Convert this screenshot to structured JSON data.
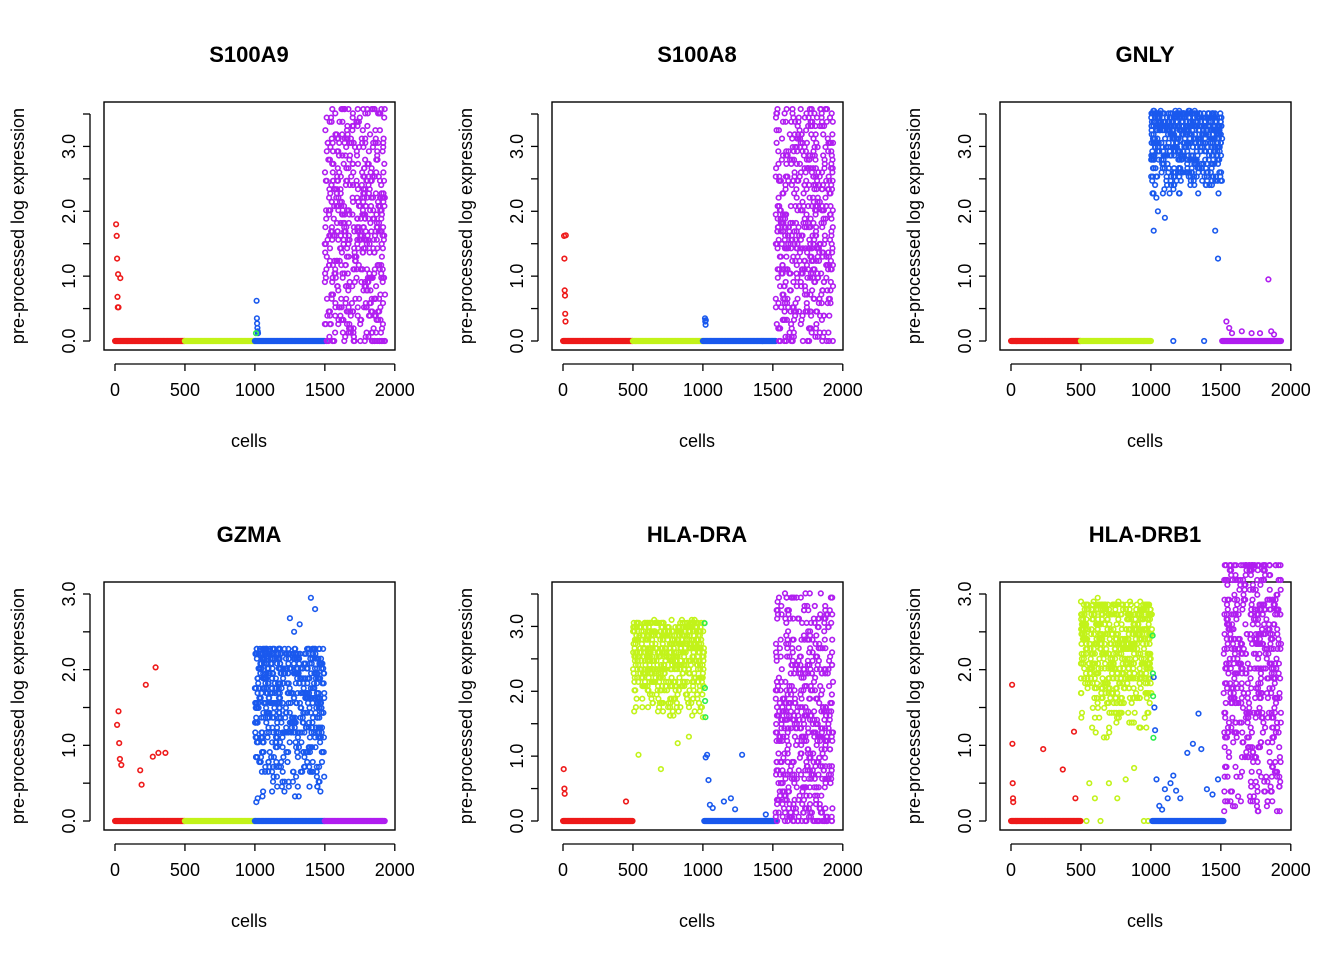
{
  "colors": {
    "red": "#ee1a1a",
    "yellowgreen": "#c2f31a",
    "blue": "#1a59ee",
    "magenta": "#b01ef0",
    "green": "#2dee4f"
  },
  "chart_data": [
    {
      "type": "scatter",
      "title": "S100A9",
      "xlabel": "cells",
      "ylabel": "pre-processed log expression",
      "xlim": [
        0,
        1930
      ],
      "ylim": [
        0,
        3.55
      ],
      "xticks": [
        0,
        500,
        1000,
        1500,
        2000
      ],
      "xtick_labels": [
        "0",
        "500",
        "1000",
        "1500",
        "2000"
      ],
      "yticks": [
        0.0,
        0.5,
        1.0,
        1.5,
        2.0,
        2.5,
        3.0,
        3.5
      ],
      "ytick_labels": [
        "0.0",
        "",
        "1.0",
        "",
        "2.0",
        "",
        "3.0",
        ""
      ],
      "groups": [
        {
          "x_range": [
            1,
            500
          ],
          "color": "red",
          "dist": "spikes",
          "pts": [
            [
              8,
              1.8
            ],
            [
              12,
              1.62
            ],
            [
              15,
              1.27
            ],
            [
              18,
              0.68
            ],
            [
              20,
              0.52
            ],
            [
              22,
              1.03
            ],
            [
              25,
              0.52
            ],
            [
              38,
              0.97
            ]
          ]
        },
        {
          "x_range": [
            500,
            1000
          ],
          "color": "yellowgreen",
          "dist": "zero"
        },
        {
          "x_range": [
            1000,
            1500
          ],
          "color": "blue",
          "dist": "spikes",
          "pts": [
            [
              1012,
              0.62
            ],
            [
              1014,
              0.35
            ],
            [
              1016,
              0.27
            ],
            [
              1018,
              0.2
            ],
            [
              1020,
              0.15
            ],
            [
              1022,
              0.12
            ]
          ]
        },
        {
          "x_range": [
            1000,
            1020
          ],
          "color": "green",
          "dist": "spikes",
          "pts": [
            [
              1008,
              0.12
            ]
          ]
        },
        {
          "x_range": [
            1500,
            1930
          ],
          "color": "magenta",
          "dist": "spread",
          "lo": 0.0,
          "hi": 3.55,
          "density": "dense"
        }
      ]
    },
    {
      "type": "scatter",
      "title": "S100A8",
      "xlabel": "cells",
      "ylabel": "pre-processed log expression",
      "xlim": [
        0,
        1930
      ],
      "ylim": [
        0,
        3.55
      ],
      "xticks": [
        0,
        500,
        1000,
        1500,
        2000
      ],
      "xtick_labels": [
        "0",
        "500",
        "1000",
        "1500",
        "2000"
      ],
      "yticks": [
        0.0,
        0.5,
        1.0,
        1.5,
        2.0,
        2.5,
        3.0,
        3.5
      ],
      "ytick_labels": [
        "0.0",
        "",
        "1.0",
        "",
        "2.0",
        "",
        "3.0",
        ""
      ],
      "groups": [
        {
          "x_range": [
            1,
            500
          ],
          "color": "red",
          "dist": "spikes",
          "pts": [
            [
              8,
              1.62
            ],
            [
              10,
              1.27
            ],
            [
              12,
              0.78
            ],
            [
              14,
              0.7
            ],
            [
              16,
              0.42
            ],
            [
              18,
              0.3
            ],
            [
              20,
              1.63
            ]
          ]
        },
        {
          "x_range": [
            500,
            1000
          ],
          "color": "yellowgreen",
          "dist": "zero"
        },
        {
          "x_range": [
            1000,
            1520
          ],
          "color": "blue",
          "dist": "spikes",
          "pts": [
            [
              1015,
              0.35
            ],
            [
              1017,
              0.3
            ],
            [
              1019,
              0.25
            ],
            [
              1021,
              0.32
            ]
          ]
        },
        {
          "x_range": [
            1520,
            1930
          ],
          "color": "magenta",
          "dist": "spread",
          "lo": 0.0,
          "hi": 3.55,
          "density": "dense"
        }
      ]
    },
    {
      "type": "scatter",
      "title": "GNLY",
      "xlabel": "cells",
      "ylabel": "pre-processed log expression",
      "xlim": [
        0,
        1930
      ],
      "ylim": [
        0,
        3.55
      ],
      "xticks": [
        0,
        500,
        1000,
        1500,
        2000
      ],
      "xtick_labels": [
        "0",
        "500",
        "1000",
        "1500",
        "2000"
      ],
      "yticks": [
        0.0,
        0.5,
        1.0,
        1.5,
        2.0,
        2.5,
        3.0,
        3.5
      ],
      "ytick_labels": [
        "0.0",
        "",
        "1.0",
        "",
        "2.0",
        "",
        "3.0",
        ""
      ],
      "groups": [
        {
          "x_range": [
            1,
            500
          ],
          "color": "red",
          "dist": "zero"
        },
        {
          "x_range": [
            500,
            1000
          ],
          "color": "yellowgreen",
          "dist": "zero"
        },
        {
          "x_range": [
            1000,
            1510
          ],
          "color": "blue",
          "dist": "high",
          "lo": 2.2,
          "hi": 3.55,
          "extra": [
            [
              1020,
              1.7
            ],
            [
              1050,
              2.0
            ],
            [
              1100,
              1.9
            ],
            [
              1480,
              1.27
            ],
            [
              1460,
              1.7
            ],
            [
              1160,
              0.0
            ],
            [
              1380,
              0.0
            ]
          ]
        },
        {
          "x_range": [
            1510,
            1930
          ],
          "color": "magenta",
          "dist": "spikes",
          "pts": [
            [
              1540,
              0.3
            ],
            [
              1560,
              0.2
            ],
            [
              1580,
              0.12
            ],
            [
              1650,
              0.15
            ],
            [
              1720,
              0.12
            ],
            [
              1780,
              0.12
            ],
            [
              1840,
              0.95
            ],
            [
              1860,
              0.15
            ],
            [
              1880,
              0.1
            ]
          ]
        }
      ]
    },
    {
      "type": "scatter",
      "title": "GZMA",
      "xlabel": "cells",
      "ylabel": "pre-processed log expression",
      "xlim": [
        0,
        1930
      ],
      "ylim": [
        0,
        3.0
      ],
      "xticks": [
        0,
        500,
        1000,
        1500,
        2000
      ],
      "xtick_labels": [
        "0",
        "500",
        "1000",
        "1500",
        "2000"
      ],
      "yticks": [
        0.0,
        0.5,
        1.0,
        1.5,
        2.0,
        2.5,
        3.0
      ],
      "ytick_labels": [
        "0.0",
        "",
        "1.0",
        "",
        "2.0",
        "",
        "3.0"
      ],
      "groups": [
        {
          "x_range": [
            1,
            500
          ],
          "color": "red",
          "dist": "spikes",
          "pts": [
            [
              15,
              1.27
            ],
            [
              25,
              1.45
            ],
            [
              30,
              1.03
            ],
            [
              35,
              0.82
            ],
            [
              45,
              0.74
            ],
            [
              180,
              0.67
            ],
            [
              220,
              1.8
            ],
            [
              270,
              0.85
            ],
            [
              290,
              2.03
            ],
            [
              310,
              0.9
            ],
            [
              360,
              0.9
            ],
            [
              190,
              0.48
            ]
          ]
        },
        {
          "x_range": [
            500,
            1000
          ],
          "color": "yellowgreen",
          "dist": "zero"
        },
        {
          "x_range": [
            1000,
            1500
          ],
          "color": "blue",
          "dist": "high",
          "lo": 0.2,
          "hi": 2.3,
          "extra": [
            [
              1400,
              2.95
            ],
            [
              1430,
              2.8
            ],
            [
              1250,
              2.68
            ],
            [
              1320,
              2.6
            ],
            [
              1280,
              2.5
            ],
            [
              1010,
              0.25
            ],
            [
              1020,
              0.3
            ]
          ],
          "zero_band": true
        },
        {
          "x_range": [
            1500,
            1930
          ],
          "color": "magenta",
          "dist": "zero"
        }
      ]
    },
    {
      "type": "scatter",
      "title": "HLA-DRA",
      "xlabel": "cells",
      "ylabel": "pre-processed log expression",
      "xlim": [
        0,
        1930
      ],
      "ylim": [
        0,
        3.55
      ],
      "xticks": [
        0,
        500,
        1000,
        1500,
        2000
      ],
      "xtick_labels": [
        "0",
        "500",
        "1000",
        "1500",
        "2000"
      ],
      "yticks": [
        0.0,
        0.5,
        1.0,
        1.5,
        2.0,
        2.5,
        3.0,
        3.5
      ],
      "ytick_labels": [
        "0.0",
        "",
        "1.0",
        "",
        "2.0",
        "",
        "3.0",
        ""
      ],
      "groups": [
        {
          "x_range": [
            1,
            500
          ],
          "color": "red",
          "dist": "spikes",
          "pts": [
            [
              5,
              0.8
            ],
            [
              10,
              0.5
            ],
            [
              12,
              0.42
            ],
            [
              450,
              0.3
            ]
          ]
        },
        {
          "x_range": [
            500,
            1010
          ],
          "color": "yellowgreen",
          "dist": "high",
          "lo": 1.5,
          "hi": 3.1,
          "extra": [
            [
              540,
              1.02
            ],
            [
              700,
              0.8
            ],
            [
              820,
              1.2
            ],
            [
              900,
              1.3
            ],
            [
              1000,
              1.6
            ]
          ]
        },
        {
          "x_range": [
            1010,
            1520
          ],
          "color": "blue",
          "dist": "spikes",
          "pts": [
            [
              1020,
              0.98
            ],
            [
              1030,
              1.02
            ],
            [
              1040,
              0.63
            ],
            [
              1050,
              0.25
            ],
            [
              1070,
              0.2
            ],
            [
              1150,
              0.3
            ],
            [
              1200,
              0.35
            ],
            [
              1230,
              0.18
            ],
            [
              1280,
              1.02
            ],
            [
              1450,
              0.1
            ]
          ],
          "zero_band": true
        },
        {
          "x_range": [
            1010,
            1020
          ],
          "color": "green",
          "dist": "spikes",
          "pts": [
            [
              1012,
              3.05
            ],
            [
              1014,
              2.05
            ],
            [
              1016,
              1.85
            ],
            [
              1018,
              1.6
            ]
          ]
        },
        {
          "x_range": [
            1520,
            1930
          ],
          "color": "magenta",
          "dist": "spread",
          "lo": 0.0,
          "hi": 3.5,
          "density": "dense",
          "center": 1.4
        }
      ]
    },
    {
      "type": "scatter",
      "title": "HLA-DRB1",
      "xlabel": "cells",
      "ylabel": "pre-processed log expression",
      "xlim": [
        0,
        1930
      ],
      "ylim": [
        0,
        3.4
      ],
      "xticks": [
        0,
        500,
        1000,
        1500,
        2000
      ],
      "xtick_labels": [
        "0",
        "500",
        "1000",
        "1500",
        "2000"
      ],
      "yticks": [
        0.0,
        0.5,
        1.0,
        1.5,
        2.0,
        2.5,
        3.0
      ],
      "ytick_labels": [
        "0.0",
        "",
        "1.0",
        "",
        "2.0",
        "",
        "3.0"
      ],
      "groups": [
        {
          "x_range": [
            1,
            500
          ],
          "color": "red",
          "dist": "spikes",
          "pts": [
            [
              8,
              1.8
            ],
            [
              10,
              1.02
            ],
            [
              12,
              0.5
            ],
            [
              14,
              0.3
            ],
            [
              16,
              0.25
            ],
            [
              230,
              0.95
            ],
            [
              370,
              0.68
            ],
            [
              450,
              1.18
            ],
            [
              460,
              0.3
            ]
          ]
        },
        {
          "x_range": [
            500,
            1010
          ],
          "color": "yellowgreen",
          "dist": "high",
          "lo": 1.1,
          "hi": 2.9,
          "extra": [
            [
              560,
              0.5
            ],
            [
              600,
              0.3
            ],
            [
              640,
              0.0
            ],
            [
              700,
              0.5
            ],
            [
              760,
              0.3
            ],
            [
              820,
              0.55
            ],
            [
              880,
              0.7
            ],
            [
              950,
              0.0
            ],
            [
              980,
              0.0
            ],
            [
              620,
              2.95
            ],
            [
              820,
              2.8
            ],
            [
              540,
              0.0
            ]
          ]
        },
        {
          "x_range": [
            1010,
            1520
          ],
          "color": "blue",
          "dist": "spikes",
          "pts": [
            [
              1020,
              1.9
            ],
            [
              1025,
              1.5
            ],
            [
              1030,
              1.2
            ],
            [
              1040,
              0.55
            ],
            [
              1060,
              0.2
            ],
            [
              1080,
              0.15
            ],
            [
              1100,
              0.42
            ],
            [
              1120,
              0.3
            ],
            [
              1140,
              0.5
            ],
            [
              1160,
              0.6
            ],
            [
              1180,
              0.4
            ],
            [
              1210,
              0.3
            ],
            [
              1260,
              0.9
            ],
            [
              1300,
              1.02
            ],
            [
              1340,
              1.42
            ],
            [
              1360,
              0.95
            ],
            [
              1400,
              0.42
            ],
            [
              1440,
              0.35
            ],
            [
              1480,
              0.55
            ]
          ],
          "zero_band": true
        },
        {
          "x_range": [
            1010,
            1020
          ],
          "color": "green",
          "dist": "spikes",
          "pts": [
            [
              1012,
              2.45
            ],
            [
              1014,
              1.95
            ],
            [
              1016,
              1.65
            ],
            [
              1018,
              1.1
            ]
          ]
        },
        {
          "x_range": [
            1520,
            1930
          ],
          "color": "magenta",
          "dist": "spread",
          "lo": 0.15,
          "hi": 3.35,
          "density": "dense",
          "center": 2.3
        }
      ]
    }
  ]
}
